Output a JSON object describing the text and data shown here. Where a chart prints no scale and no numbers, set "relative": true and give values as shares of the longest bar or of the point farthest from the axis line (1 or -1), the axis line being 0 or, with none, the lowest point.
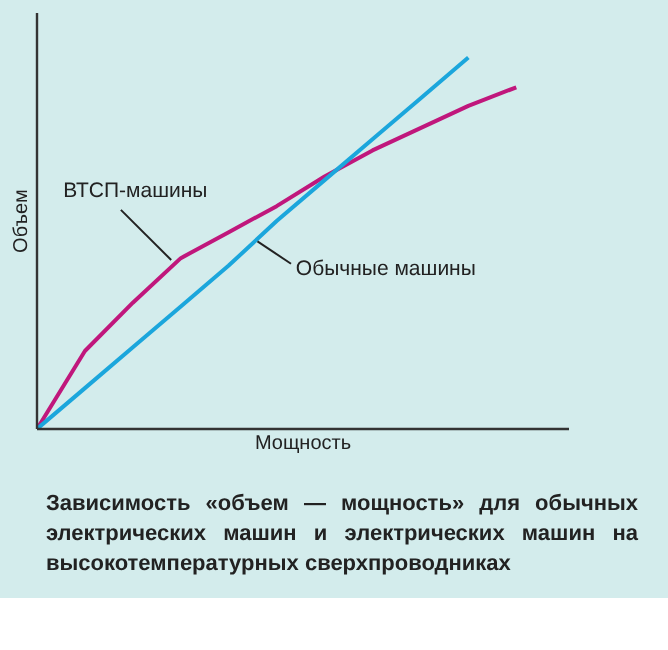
{
  "chart_data": {
    "type": "line",
    "title": "Зависимость «объем — мощность» для обычных электрических машин и электрических машин на высокотемпературных сверхпроводниках",
    "xlabel": "Мощность",
    "ylabel": "Объем",
    "relative": true,
    "categories": [
      null,
      null,
      null,
      null,
      null,
      null,
      null,
      null,
      null,
      null,
      null
    ],
    "series": [
      {
        "name": "ВТСП-машины",
        "color": "#c0177c",
        "values": [
          0,
          0.21,
          0.34,
          0.46,
          0.53,
          0.6,
          0.68,
          0.75,
          0.81,
          0.87,
          0.92
        ]
      },
      {
        "name": "Обычные машины",
        "color": "#1ba6dc",
        "values": [
          0,
          0.11,
          0.22,
          0.33,
          0.44,
          0.56,
          0.67,
          0.78,
          0.89,
          1.0,
          null
        ]
      }
    ]
  }
}
